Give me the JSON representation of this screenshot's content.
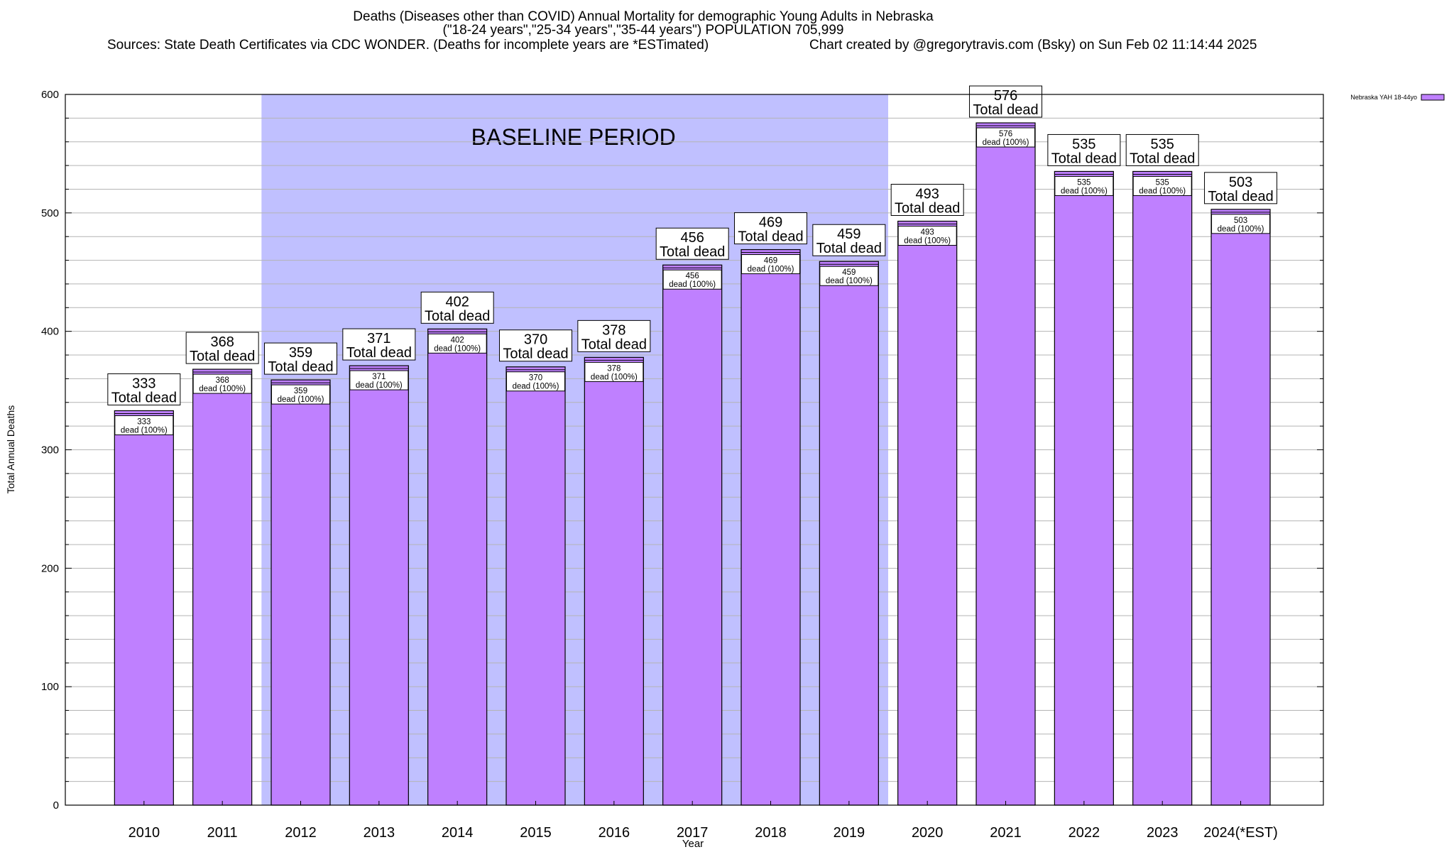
{
  "chart_data": {
    "type": "bar",
    "title_line1": "Deaths (Diseases other than COVID) Annual Mortality for demographic Young Adults in Nebraska",
    "title_line2": "(\"18-24 years\",\"25-34 years\",\"35-44 years\") POPULATION 705,999",
    "sources": "Sources: State Death Certificates via CDC WONDER. (Deaths for incomplete years are *ESTimated)",
    "credit": "Chart created by @gregorytravis.com (Bsky) on Sun Feb 02 11:14:44 2025",
    "xlabel": "Year",
    "ylabel": "Total Annual Deaths",
    "ylim": [
      0,
      600
    ],
    "y_ticks": [
      0,
      100,
      200,
      300,
      400,
      500,
      600
    ],
    "grid": true,
    "legend": {
      "label": "Nebraska YAH 18-44yo",
      "position": "top-right"
    },
    "baseline": {
      "label": "BASELINE PERIOD",
      "from": "2012",
      "to": "2019"
    },
    "categories": [
      "2010",
      "2011",
      "2012",
      "2013",
      "2014",
      "2015",
      "2016",
      "2017",
      "2018",
      "2019",
      "2020",
      "2021",
      "2022",
      "2023",
      "2024(*EST)"
    ],
    "series": [
      {
        "name": "Nebraska YAH 18-44yo",
        "values": [
          333,
          368,
          359,
          371,
          402,
          370,
          378,
          456,
          469,
          459,
          493,
          576,
          535,
          535,
          503
        ]
      }
    ],
    "top_label_suffix": "Total dead",
    "inner_label_suffix": "dead (100%)",
    "colors": {
      "bar": "#bf80ff",
      "bar_outline": "#000000",
      "baseline_fill": "#c0c0ff"
    }
  }
}
